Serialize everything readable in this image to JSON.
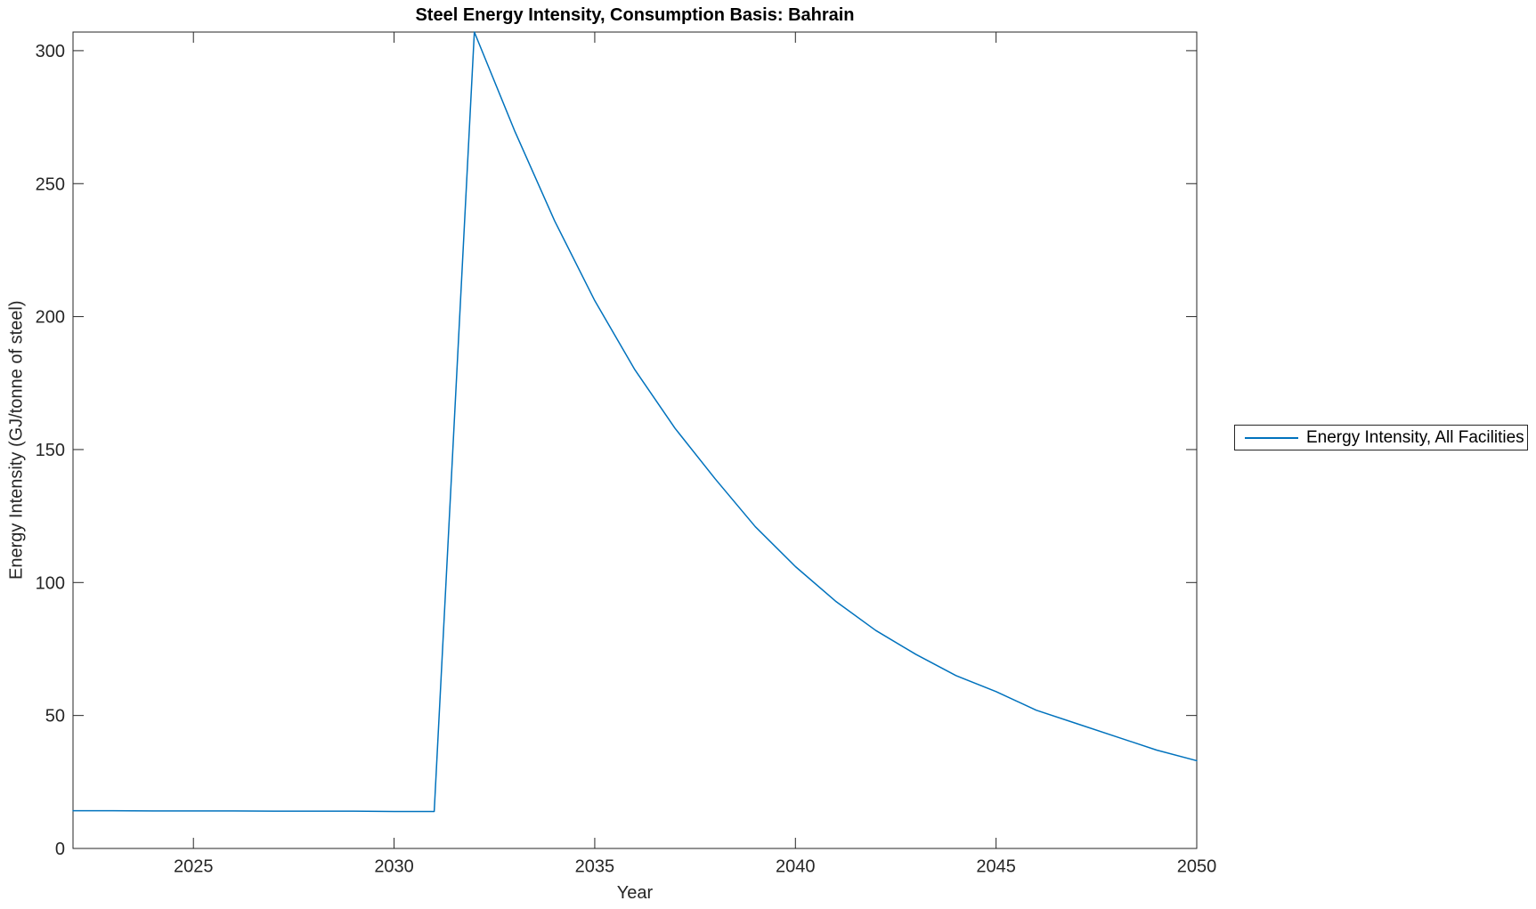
{
  "figure": {
    "title": "Steel Energy Intensity, Consumption Basis: Bahrain",
    "xlabel": "Year",
    "ylabel": "Energy Intensity (GJ/tonne of steel)"
  },
  "legend": {
    "entries": [
      {
        "label": "Energy Intensity, All Facilities",
        "color": "#0072BD"
      }
    ],
    "position": "outside-right"
  },
  "colors": {
    "line": "#0072BD",
    "axis": "#262626",
    "text": "#262626",
    "background": "#ffffff"
  },
  "chart_data": {
    "type": "line",
    "title": "Steel Energy Intensity, Consumption Basis: Bahrain",
    "xlabel": "Year",
    "ylabel": "Energy Intensity (GJ/tonne of steel)",
    "xlim": [
      2022,
      2050
    ],
    "ylim": [
      0,
      307
    ],
    "xticks": [
      2025,
      2030,
      2035,
      2040,
      2045,
      2050
    ],
    "yticks": [
      0,
      50,
      100,
      150,
      200,
      250,
      300
    ],
    "grid": false,
    "legend_position": "outside-right",
    "series": [
      {
        "name": "Energy Intensity, All Facilities",
        "color": "#0072BD",
        "x": [
          2022,
          2023,
          2024,
          2025,
          2026,
          2027,
          2028,
          2029,
          2030,
          2031,
          2032,
          2033,
          2034,
          2035,
          2036,
          2037,
          2038,
          2039,
          2040,
          2041,
          2042,
          2043,
          2044,
          2045,
          2046,
          2047,
          2048,
          2049,
          2050
        ],
        "y": [
          14.2,
          14.2,
          14.1,
          14.1,
          14.1,
          14.0,
          14.0,
          14.0,
          13.9,
          13.9,
          307,
          270,
          236,
          206,
          180,
          158,
          139,
          121,
          106,
          93,
          82,
          73,
          65,
          59,
          52,
          47,
          42,
          37,
          33
        ]
      }
    ]
  }
}
